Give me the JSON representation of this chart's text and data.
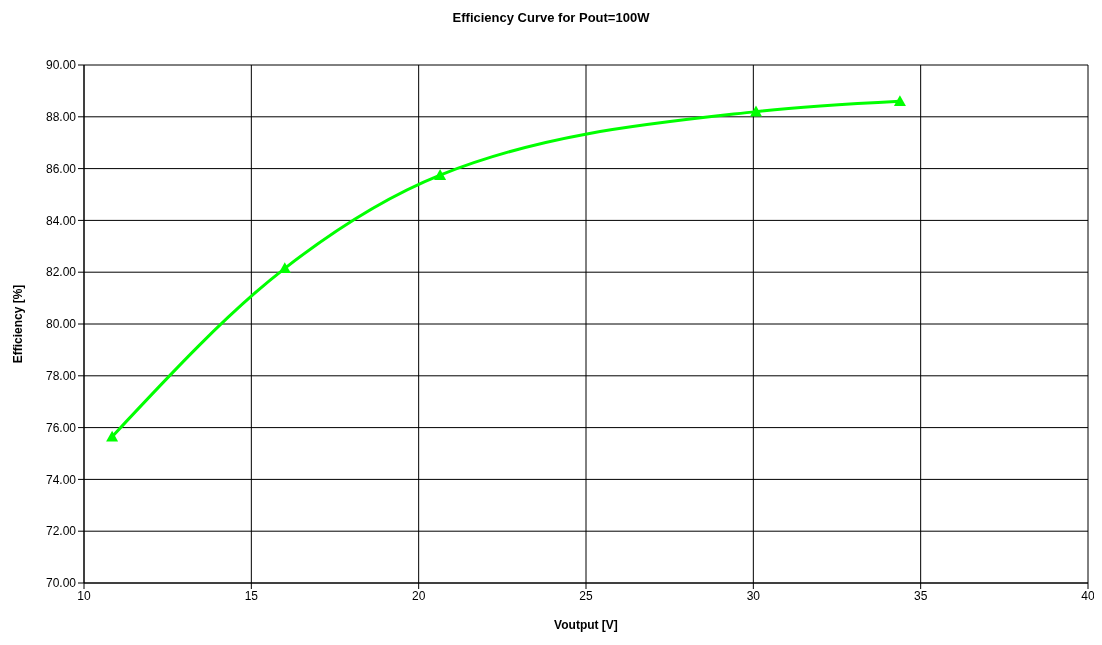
{
  "chart_data": {
    "type": "line",
    "title": "Efficiency Curve for Pout=100W",
    "xlabel": "Voutput [V]",
    "ylabel": "Efficiency [%]",
    "x": [
      10.84,
      16.0,
      20.64,
      30.08,
      34.38
    ],
    "series": [
      {
        "color": "#00ff00",
        "values": [
          75.65,
          82.15,
          85.75,
          88.2,
          88.6
        ]
      }
    ],
    "xlim": [
      10,
      40
    ],
    "xticks": [
      10,
      15,
      20,
      25,
      30,
      35,
      40
    ],
    "ylim": [
      70,
      90
    ],
    "yticks": [
      {
        "value": 70,
        "label": "70.00"
      },
      {
        "value": 72,
        "label": "72.00"
      },
      {
        "value": 74,
        "label": "74.00"
      },
      {
        "value": 76,
        "label": "76.00"
      },
      {
        "value": 78,
        "label": "78.00"
      },
      {
        "value": 80,
        "label": "80.00"
      },
      {
        "value": 82,
        "label": "82.00"
      },
      {
        "value": 84,
        "label": "84.00"
      },
      {
        "value": 86,
        "label": "86.00"
      },
      {
        "value": 88,
        "label": "88.00"
      },
      {
        "value": 90,
        "label": "90.00"
      }
    ],
    "grid": true,
    "marker": "triangle",
    "line_style": "solid"
  }
}
